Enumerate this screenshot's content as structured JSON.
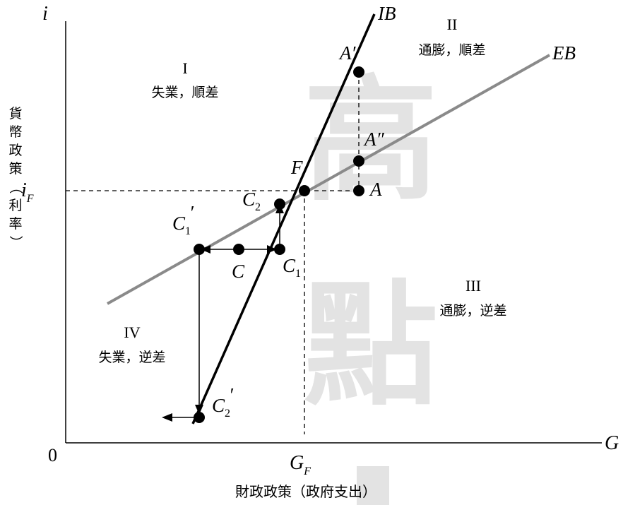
{
  "axes": {
    "y_symbol": "i",
    "x_symbol": "G",
    "origin": "0",
    "y_tick": {
      "main": "i",
      "sub": "F"
    },
    "x_tick": {
      "main": "G",
      "sub": "F"
    },
    "y_title_chars": [
      "貨",
      "幣",
      "政",
      "策",
      "（",
      "利",
      "率",
      "）"
    ],
    "x_title": "財政政策（政府支出）"
  },
  "lines": {
    "ib": "IB",
    "eb": "EB",
    "eb_color": "#8a8a8a",
    "ib_color": "#000000"
  },
  "regions": {
    "r1": {
      "numeral": "I",
      "text": "失業，順差"
    },
    "r2": {
      "numeral": "II",
      "text": "通膨，順差"
    },
    "r3": {
      "numeral": "III",
      "text": "通膨，逆差"
    },
    "r4": {
      "numeral": "IV",
      "text": "失業，逆差"
    }
  },
  "points": {
    "F": "F",
    "A": "A",
    "A_prime": "A′",
    "A_dprime": "A″",
    "C": "C",
    "C1": {
      "main": "C",
      "sub": "1"
    },
    "C1_prime": {
      "main": "C",
      "sub": "1",
      "prime": "′"
    },
    "C2": {
      "main": "C",
      "sub": "2"
    },
    "C2_prime": {
      "main": "C",
      "sub": "2",
      "prime": "′"
    }
  },
  "watermark": {
    "chars": [
      "高",
      "點"
    ],
    "color": "#e3e3e3"
  }
}
